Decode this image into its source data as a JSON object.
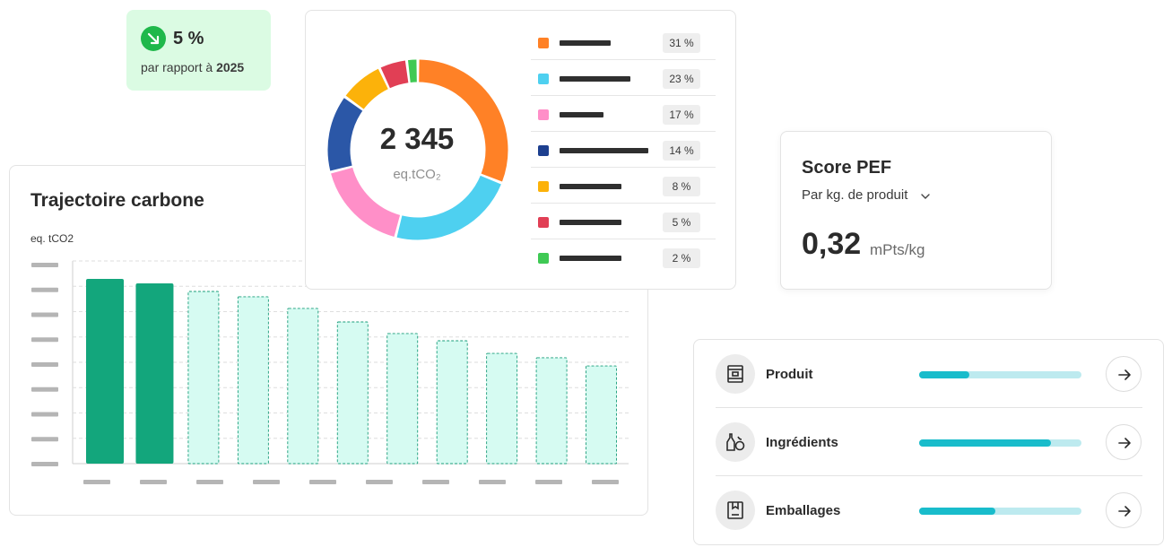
{
  "badge": {
    "value": "5 %",
    "sub_prefix": "par rapport à",
    "sub_year": "2025",
    "icon": "arrow-down-right-icon",
    "color": "#1fb84b"
  },
  "trajectory": {
    "title": "Trajectoire carbone",
    "unit": "eq. tCO2",
    "bar_color_actual": "#13a67c",
    "bar_color_projected": "#d6fbf2",
    "chart_data": {
      "type": "bar",
      "title": "Trajectoire carbone",
      "ylabel": "eq. tCO2",
      "tick_labels_redacted": true,
      "y_gridlines": 8,
      "values_relative": [
        100,
        97.6,
        93.2,
        90.3,
        84.0,
        76.7,
        70.4,
        66.5,
        59.7,
        57.3,
        52.9
      ],
      "kind": [
        "actual",
        "actual",
        "projected",
        "projected",
        "projected",
        "projected",
        "projected",
        "projected",
        "projected",
        "projected",
        "projected"
      ]
    }
  },
  "donut": {
    "total": "2 345",
    "unit": "eq.tCO₂",
    "chart_data": {
      "type": "pie",
      "donut": true,
      "values": [
        31,
        23,
        17,
        14,
        8,
        5,
        2
      ],
      "labels_redacted": true,
      "colors": [
        "#ff8126",
        "#4ed0f0",
        "#ff8fc8",
        "#2b57a7",
        "#fcb20a",
        "#e13f55",
        "#3fc954"
      ]
    },
    "legend": [
      {
        "pct": "31 %",
        "color": "#ff8126",
        "bar_w": 57
      },
      {
        "pct": "23 %",
        "color": "#4ed0f0",
        "bar_w": 79
      },
      {
        "pct": "17 %",
        "color": "#ff8fc8",
        "bar_w": 49
      },
      {
        "pct": "14 %",
        "color": "#1d3f8f",
        "bar_w": 99
      },
      {
        "pct": "8 %",
        "color": "#fcb20a",
        "bar_w": 69
      },
      {
        "pct": "5 %",
        "color": "#e13f55",
        "bar_w": 69
      },
      {
        "pct": "2 %",
        "color": "#3fc954",
        "bar_w": 69
      }
    ]
  },
  "pef": {
    "title": "Score PEF",
    "selector": "Par kg. de produit",
    "chevron": "chevron-down-icon",
    "value": "0,32",
    "unit": "mPts/kg"
  },
  "categories": [
    {
      "label": "Produit",
      "icon": "product-box-icon",
      "progress": 0.31
    },
    {
      "label": "Ingrédients",
      "icon": "ingredients-icon",
      "progress": 0.81
    },
    {
      "label": "Emballages",
      "icon": "packaging-icon",
      "progress": 0.47
    }
  ]
}
